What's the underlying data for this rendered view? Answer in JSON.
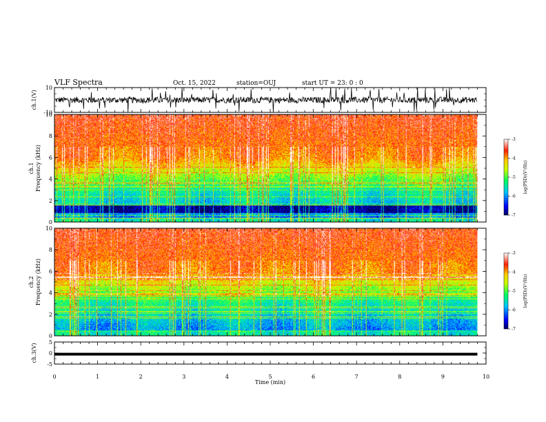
{
  "header": {
    "title": "VLF Spectra",
    "date": "Oct. 15, 2022",
    "station": "station=OUJ",
    "start": "start  UT =   23: 0  : 0"
  },
  "chart_data": [
    {
      "type": "line",
      "name": "ch1-waveform",
      "ylabel": "ch.1(V)",
      "ylim": [
        -10,
        10
      ],
      "yticks": [
        "10",
        "-10"
      ],
      "xlim": [
        0,
        10
      ],
      "color": "#000000"
    },
    {
      "type": "heatmap",
      "name": "ch1-spectrogram",
      "ylabel": "ch.1\nFrequency  (kHz)",
      "ylim": [
        0,
        10
      ],
      "yticks": [
        "0",
        "2",
        "4",
        "6",
        "8",
        "10"
      ],
      "xlim": [
        0,
        9.8
      ],
      "colorbar": {
        "label": "log(PSD)(V²/Hz)",
        "range": [
          -7,
          -3
        ],
        "ticks": [
          "-3",
          "-4",
          "-5",
          "-6",
          "-7"
        ]
      }
    },
    {
      "type": "heatmap",
      "name": "ch2-spectrogram",
      "ylabel": "ch.2\nFrequency  (kHz)",
      "ylim": [
        0,
        10
      ],
      "yticks": [
        "0",
        "2",
        "4",
        "6",
        "8",
        "10"
      ],
      "xlim": [
        0,
        9.8
      ],
      "colorbar": {
        "label": "log(PSD)(V²/Hz)",
        "range": [
          -7,
          -3
        ],
        "ticks": [
          "-3",
          "-4",
          "-5",
          "-6",
          "-7"
        ]
      }
    },
    {
      "type": "line",
      "name": "ch3-waveform",
      "ylabel": "ch.3(V)",
      "ylim": [
        -5,
        5
      ],
      "yticks": [
        "5",
        "0",
        "-5"
      ],
      "xlim": [
        0,
        10
      ],
      "value": -0.5,
      "color": "#000000"
    }
  ],
  "xaxis": {
    "label": "Time  (min)",
    "ticks": [
      "0",
      "1",
      "2",
      "3",
      "4",
      "5",
      "6",
      "7",
      "8",
      "9",
      "10"
    ],
    "range": [
      0,
      10
    ]
  }
}
